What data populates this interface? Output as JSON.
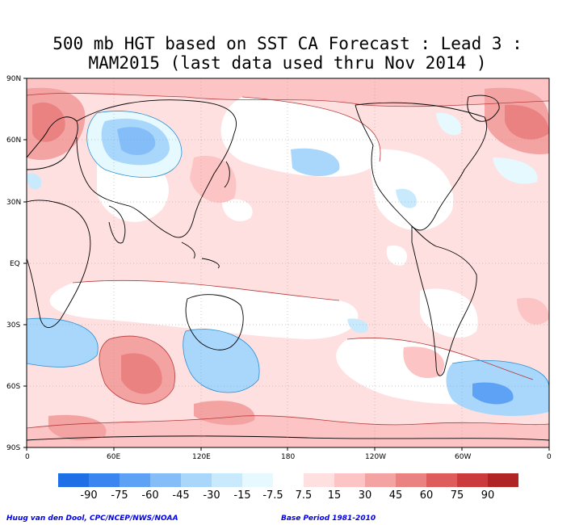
{
  "title_line1": "500 mb HGT based on SST CA Forecast : Lead 3 :",
  "title_line2": "MAM2015 (last data used thru Nov 2014 )",
  "lat_labels": [
    "90N",
    "60N",
    "30N",
    "EQ",
    "30S",
    "60S",
    "90S"
  ],
  "lon_labels": [
    "0",
    "60E",
    "120E",
    "180",
    "120W",
    "60W",
    "0"
  ],
  "colorbar": {
    "labels": [
      "-90",
      "-75",
      "-60",
      "-45",
      "-30",
      "-15",
      "-7.5",
      "7.5",
      "15",
      "30",
      "45",
      "60",
      "75",
      "90"
    ],
    "colors": [
      "#1f6fe6",
      "#3a86f0",
      "#5ea2f5",
      "#84bdf8",
      "#a9d6fb",
      "#c9eafd",
      "#e6f9ff",
      "#ffffff",
      "#ffe0e0",
      "#fcc4c4",
      "#f4a3a3",
      "#ea8282",
      "#de5c5c",
      "#cc3b3b",
      "#b02424"
    ]
  },
  "credit_left": "Huug van den Dool, CPC/NCEP/NWS/NOAA",
  "credit_right": "Base Period 1981-2010"
}
